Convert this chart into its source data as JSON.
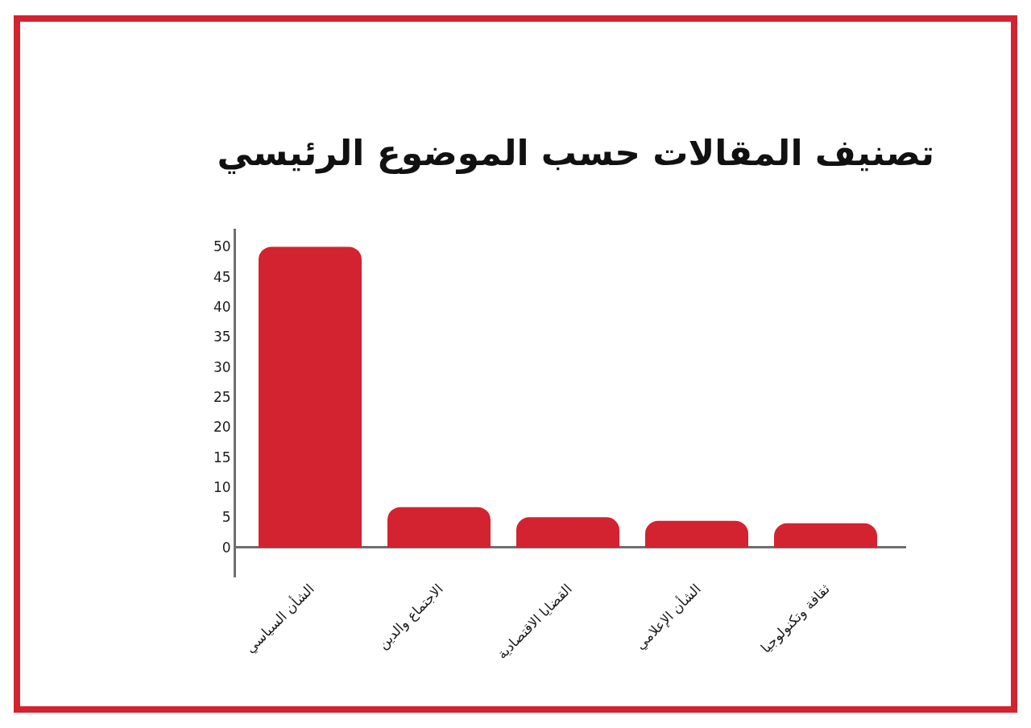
{
  "chart_data": {
    "type": "bar",
    "title": "تصنيف المقالات حسب الموضوع الرئيسي",
    "categories": [
      "الشأن السياسي",
      "الاجتماع والدين",
      "القضايا الاقتصادية",
      "الشأن الإعلامي",
      "ثقافة وتكنولوجيا"
    ],
    "values": [
      50,
      6.7,
      5,
      4.4,
      4
    ],
    "color": "#d32330",
    "ylim": [
      -5,
      53
    ],
    "yticks": [
      0,
      5,
      10,
      15,
      20,
      25,
      30,
      35,
      40,
      45,
      50
    ]
  }
}
